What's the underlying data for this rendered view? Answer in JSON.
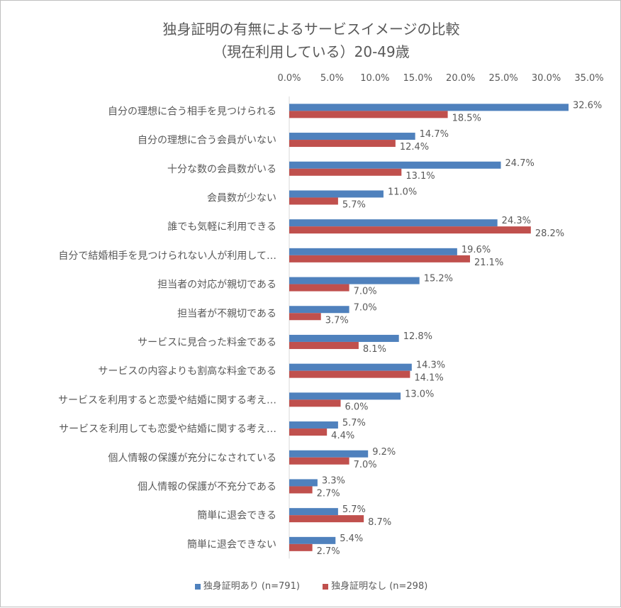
{
  "chart_data": {
    "type": "bar",
    "orientation": "horizontal",
    "title": "独身証明の有無によるサービスイメージの比較",
    "subtitle": "（現在利用している）20-49歳",
    "categories": [
      "自分の理想に合う相手を見つけられる",
      "自分の理想に合う会員がいない",
      "十分な数の会員数がいる",
      "会員数が少ない",
      "誰でも気軽に利用できる",
      "自分で結婚相手を見つけられない人が利用して…",
      "担当者の対応が親切である",
      "担当者が不親切である",
      "サービスに見合った料金である",
      "サービスの内容よりも割高な料金である",
      "サービスを利用すると恋愛や結婚に関する考え…",
      "サービスを利用しても恋愛や結婚に関する考え…",
      "個人情報の保護が充分になされている",
      "個人情報の保護が不充分である",
      "簡単に退会できる",
      "簡単に退会できない"
    ],
    "series": [
      {
        "name": "独身証明あり (n=791)",
        "color": "#4F81BD",
        "values": [
          32.6,
          14.7,
          24.7,
          11.0,
          24.3,
          19.6,
          15.2,
          7.0,
          12.8,
          14.3,
          13.0,
          5.7,
          9.2,
          3.3,
          5.7,
          5.4
        ]
      },
      {
        "name": "独身証明なし (n=298)",
        "color": "#C0504D",
        "values": [
          18.5,
          12.4,
          13.1,
          5.7,
          28.2,
          21.1,
          7.0,
          3.7,
          8.1,
          14.1,
          6.0,
          4.4,
          7.0,
          2.7,
          8.7,
          2.7
        ]
      }
    ],
    "xlim": [
      0,
      35
    ],
    "xticks": [
      "0.0%",
      "5.0%",
      "10.0%",
      "15.0%",
      "20.0%",
      "25.0%",
      "30.0%",
      "35.0%"
    ],
    "xaxis_position": "top",
    "value_format": "percent-1dp",
    "grid": false,
    "legend_position": "bottom"
  }
}
